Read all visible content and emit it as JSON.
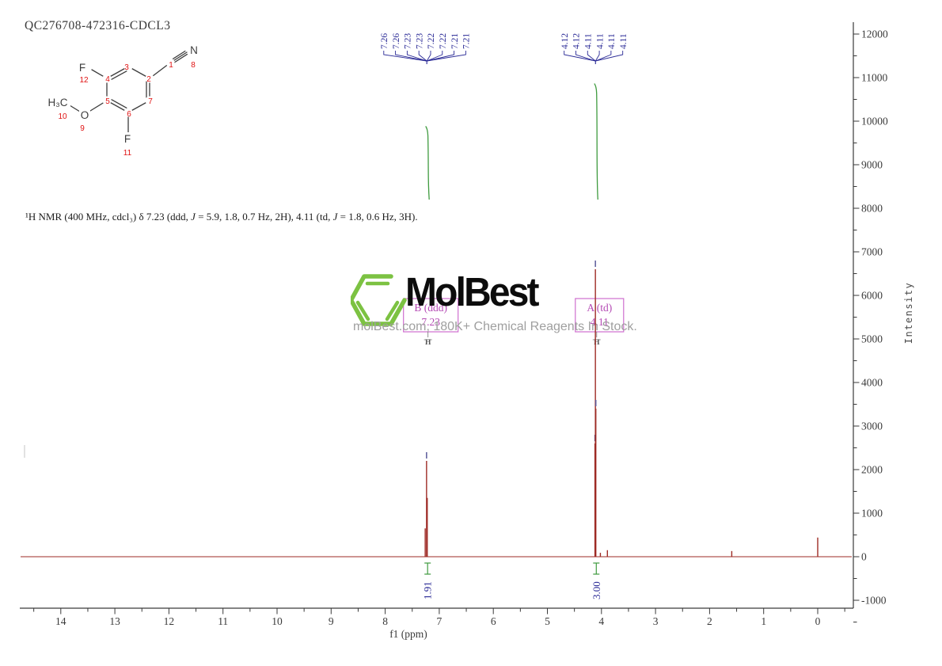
{
  "title": "QC276708-472316-CDCL3",
  "caption": {
    "parts": [
      {
        "t": "¹H NMR (400 MHz, cdcl₃) δ 7.23 (ddd, "
      },
      {
        "t": "J",
        "i": 1
      },
      {
        "t": " = 5.9, 1.8, 0.7 Hz, 2H), 4.11 (td, "
      },
      {
        "t": "J",
        "i": 1
      },
      {
        "t": " = 1.8, 0.6 Hz, 3H)."
      }
    ]
  },
  "structure": {
    "atoms": {
      "F_top": "F",
      "F_bottom": "F",
      "O": "O",
      "N": "N",
      "CH3": "H₃C"
    },
    "numbers": {
      "c1": "1",
      "c2": "2",
      "c3": "3",
      "c4": "4",
      "c5": "5",
      "c6": "6",
      "c7": "7",
      "n8": "8",
      "o9": "9",
      "c10": "10",
      "f11": "11",
      "f12": "12"
    }
  },
  "watermark": {
    "logo_text": "MolBest",
    "tagline": "molBest.com, 180K+ Chemical Reagents In Stock.",
    "logo_green": "#7cc242"
  },
  "chart_data": {
    "type": "line",
    "title": "QC276708-472316-CDCL3",
    "xlabel": "f1 (ppm)",
    "ylabel": "Intensity",
    "x_axis": {
      "ticks": [
        14,
        13,
        12,
        11,
        10,
        9,
        8,
        7,
        6,
        5,
        4,
        3,
        2,
        1,
        0
      ],
      "range": [
        14.7,
        -0.66
      ],
      "minor_step": 0.5,
      "direction": "reversed"
    },
    "y_axis": {
      "ticks": [
        12000,
        11000,
        10000,
        9000,
        8000,
        7000,
        6000,
        5000,
        4000,
        3000,
        2000,
        1000,
        0,
        -1000
      ],
      "range": [
        -1180,
        12350
      ],
      "minor_step": 500
    },
    "peaks": [
      {
        "ppm": 7.26,
        "intensity": 650
      },
      {
        "ppm": 7.235,
        "intensity": 2200
      },
      {
        "ppm": 7.222,
        "intensity": 1350
      },
      {
        "ppm": 4.12,
        "intensity": 2600
      },
      {
        "ppm": 4.112,
        "intensity": 6600
      },
      {
        "ppm": 4.104,
        "intensity": 3400
      },
      {
        "ppm": 4.02,
        "intensity": 90
      },
      {
        "ppm": 3.89,
        "intensity": 150
      },
      {
        "ppm": 1.59,
        "intensity": 130
      },
      {
        "ppm": 0.0,
        "intensity": 440
      }
    ],
    "peak_label_groups": [
      {
        "labels": [
          "7.26",
          "7.26",
          "7.23",
          "7.23",
          "7.22",
          "7.22",
          "7.21",
          "7.21"
        ],
        "center_ppm": 7.23
      },
      {
        "labels": [
          "4.12",
          "4.12",
          "4.11",
          "4.11",
          "4.11",
          "4.11"
        ],
        "center_ppm": 4.11
      }
    ],
    "integrals": [
      {
        "value": "1.91",
        "ppm": 7.23
      },
      {
        "value": "3.00",
        "ppm": 4.11
      }
    ],
    "multiplets": [
      {
        "id": "B",
        "type": "(ddd)",
        "shift": "7.23",
        "atom": "H",
        "ppm": 7.23
      },
      {
        "id": "A",
        "type": "(td)",
        "shift": "4.11",
        "atom": "H",
        "ppm": 4.11
      }
    ],
    "colors": {
      "spectrum": "#9e2b25",
      "integral": "#3f9b3f",
      "labels": "#2a2a96",
      "annotation_border": "#cf6fcf",
      "annotation_text": "#b44ab4",
      "axis": "#3a3a3a",
      "peak_marker": "#5a5a9a"
    }
  }
}
